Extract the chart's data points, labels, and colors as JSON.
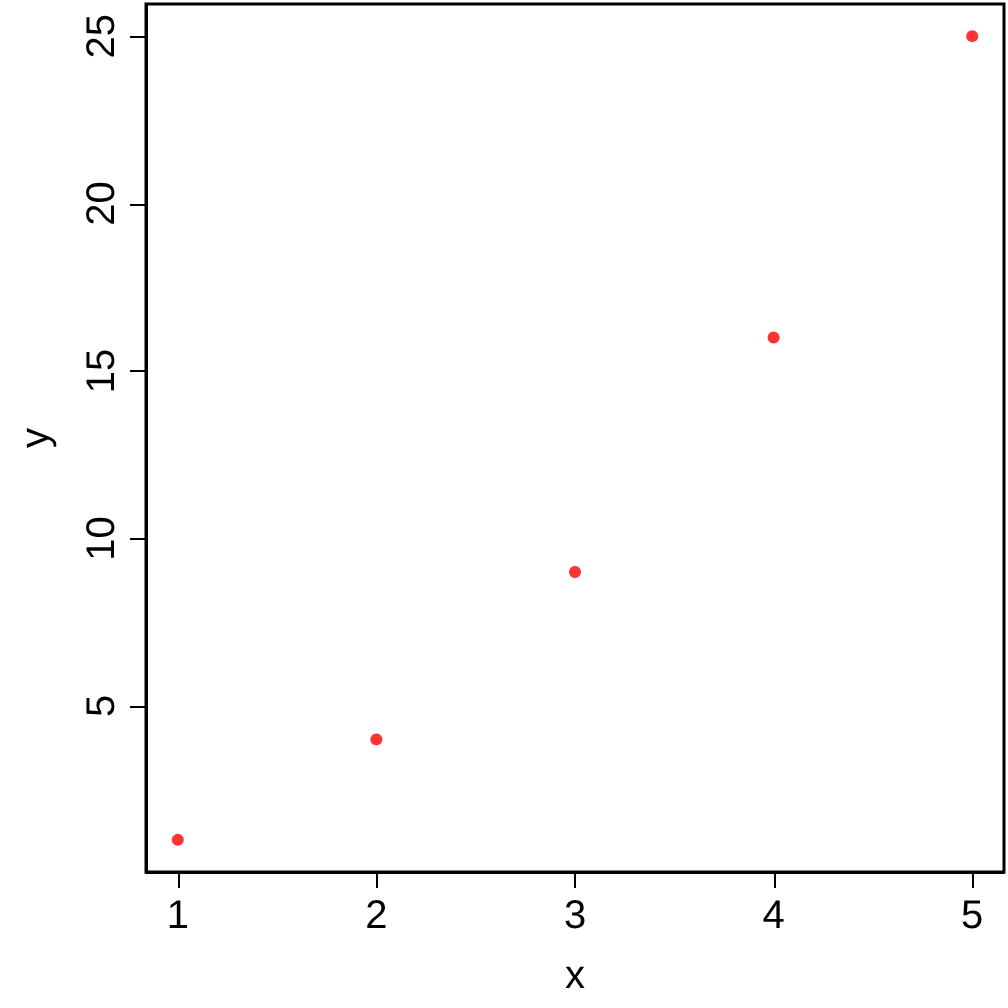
{
  "chart_data": {
    "type": "scatter",
    "xlabel": "x",
    "ylabel": "y",
    "x": [
      1,
      2,
      3,
      4,
      5
    ],
    "series": [
      {
        "color": "#ff0000",
        "values": [
          1,
          4,
          9,
          16,
          25
        ]
      }
    ],
    "xlim": [
      0.84,
      5.16
    ],
    "ylim": [
      0.04,
      25.96
    ],
    "xticks": [
      1,
      2,
      3,
      4,
      5
    ],
    "yticks": [
      5,
      10,
      15,
      20,
      25
    ],
    "grid": false,
    "marker": "circle"
  }
}
